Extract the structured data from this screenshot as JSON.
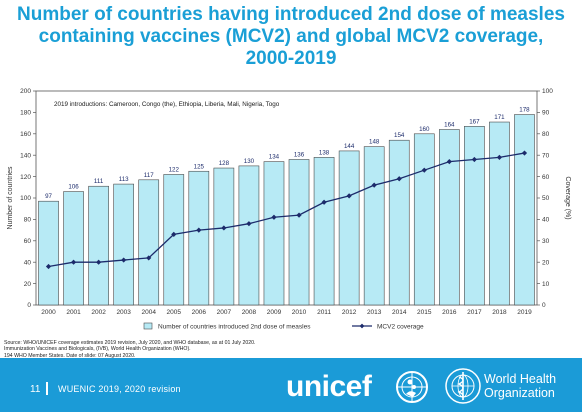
{
  "title": {
    "line1": "Number of countries having introduced 2nd dose of measles",
    "line2": "containing vaccines (MCV2) and global MCV2 coverage,",
    "line3": "2000-2019"
  },
  "chart_data": {
    "type": "bar",
    "categories": [
      "2000",
      "2001",
      "2002",
      "2003",
      "2004",
      "2005",
      "2006",
      "2007",
      "2008",
      "2009",
      "2010",
      "2011",
      "2012",
      "2013",
      "2014",
      "2015",
      "2016",
      "2017",
      "2018",
      "2019"
    ],
    "series": [
      {
        "name": "Number of countries introduced 2nd dose of measles",
        "type": "bar",
        "axis": "left",
        "color": "#b7eaf5",
        "values": [
          97,
          106,
          111,
          113,
          117,
          122,
          125,
          128,
          130,
          134,
          136,
          138,
          144,
          148,
          154,
          160,
          164,
          167,
          171,
          178
        ]
      },
      {
        "name": "MCV2 coverage",
        "type": "line",
        "axis": "right",
        "color": "#1c2b6b",
        "values": [
          18,
          20,
          20,
          21,
          22,
          33,
          35,
          36,
          38,
          41,
          42,
          48,
          51,
          56,
          59,
          63,
          67,
          68,
          69,
          71
        ]
      }
    ],
    "ylabel": "Number of countries",
    "ylabel_right": "Coverage (%)",
    "ylim": [
      0,
      200
    ],
    "ylim_right": [
      0,
      100
    ],
    "yticks": [
      "0",
      "20",
      "40",
      "60",
      "80",
      "100",
      "120",
      "140",
      "160",
      "180",
      "200"
    ],
    "yticks_right": [
      "0",
      "10",
      "20",
      "30",
      "40",
      "50",
      "60",
      "70",
      "80",
      "90",
      "100"
    ],
    "annotation": "2019 introductions: Cameroon, Congo (the), Ethiopia, Liberia, Mali, Nigeria, Togo",
    "legend_position": "bottom",
    "grid": false
  },
  "source": {
    "line1": "Source: WHO/UNICEF coverage estimates 2019 revision, July 2020, and WHO database, as at 01 July 2020.",
    "line2": "Immunization Vaccines and Biologicals, (IVB), World Health Organization (WHO).",
    "line3": "194 WHO Member States. Date of slide: 07 August 2020."
  },
  "footer": {
    "slide_number": "11",
    "event": "WUENIC 2019, 2020 revision",
    "unicef_text": "unicef",
    "who_line1": "World Health",
    "who_line2": "Organization",
    "background": "#1b9bd7"
  }
}
